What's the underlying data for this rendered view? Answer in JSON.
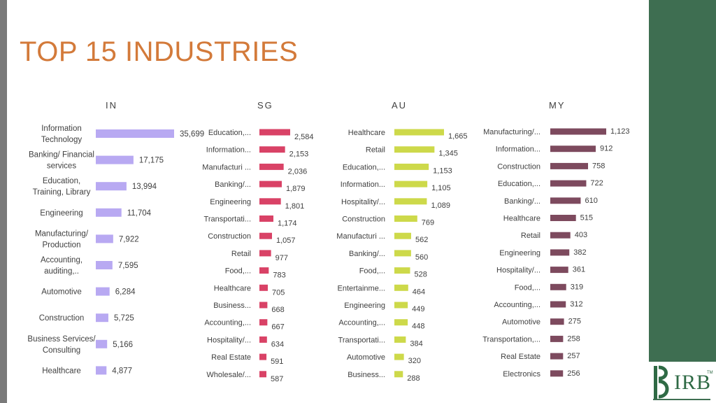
{
  "title": "TOP 15 INDUSTRIES",
  "logo": {
    "text": "IRB",
    "tm": "TM"
  },
  "colors": {
    "IN": "#b8a9f2",
    "SG": "#d94266",
    "AU": "#cdd94a",
    "MY": "#7d4a5e",
    "title": "#d37a3a",
    "panel": "#3e6e51"
  },
  "chart_data": [
    {
      "type": "bar",
      "orientation": "horizontal",
      "title": "IN",
      "categories": [
        "Information Technology",
        "Banking/ Financial services",
        "Education, Training, Library",
        "Engineering",
        "Manufacturing/ Production",
        "Accounting, auditing,..",
        "Automotive",
        "Construction",
        "Business Services/ Consulting",
        "Healthcare"
      ],
      "values": [
        35699,
        17175,
        13994,
        11704,
        7922,
        7595,
        6284,
        5725,
        5166,
        4877
      ],
      "value_labels": [
        "35,699",
        "17,175",
        "13,994",
        "11,704",
        "7,922",
        "7,595",
        "6,284",
        "5,725",
        "5,166",
        "4,877"
      ]
    },
    {
      "type": "bar",
      "orientation": "horizontal",
      "title": "SG",
      "categories": [
        "Education,...",
        "Information...",
        "Manufacturi ...",
        "Banking/...",
        "Engineering",
        "Transportati...",
        "Construction",
        "Retail",
        "Food,...",
        "Healthcare",
        "Business...",
        "Accounting,...",
        "Hospitality/...",
        "Real Estate",
        "Wholesale/..."
      ],
      "values": [
        2584,
        2153,
        2036,
        1879,
        1801,
        1174,
        1057,
        977,
        783,
        705,
        668,
        667,
        634,
        591,
        587
      ],
      "value_labels": [
        "2,584",
        "2,153",
        "2,036",
        "1,879",
        "1,801",
        "1,174",
        "1,057",
        "977",
        "783",
        "705",
        "668",
        "667",
        "634",
        "591",
        "587"
      ]
    },
    {
      "type": "bar",
      "orientation": "horizontal",
      "title": "AU",
      "categories": [
        "Healthcare",
        "Retail",
        "Education,...",
        "Information...",
        "Hospitality/...",
        "Construction",
        "Manufacturi ...",
        "Banking/...",
        "Food,...",
        "Entertainme...",
        "Engineering",
        "Accounting,...",
        "Transportati...",
        "Automotive",
        "Business..."
      ],
      "values": [
        1665,
        1345,
        1153,
        1105,
        1089,
        769,
        562,
        560,
        528,
        464,
        449,
        448,
        384,
        320,
        288
      ],
      "value_labels": [
        "1,665",
        "1,345",
        "1,153",
        "1,105",
        "1,089",
        "769",
        "562",
        "560",
        "528",
        "464",
        "449",
        "448",
        "384",
        "320",
        "288"
      ]
    },
    {
      "type": "bar",
      "orientation": "horizontal",
      "title": "MY",
      "categories": [
        "Manufacturing/...",
        "Information...",
        "Construction",
        "Education,...",
        "Banking/...",
        "Healthcare",
        "Retail",
        "Engineering",
        "Hospitality/...",
        "Food,...",
        "Accounting,...",
        "Automotive",
        "Transportation,...",
        "Real Estate",
        "Electronics"
      ],
      "values": [
        1123,
        912,
        758,
        722,
        610,
        515,
        403,
        382,
        361,
        319,
        312,
        275,
        258,
        257,
        256
      ],
      "value_labels": [
        "1,123",
        "912",
        "758",
        "722",
        "610",
        "515",
        "403",
        "382",
        "361",
        "319",
        "312",
        "275",
        "258",
        "257",
        "256"
      ]
    }
  ]
}
